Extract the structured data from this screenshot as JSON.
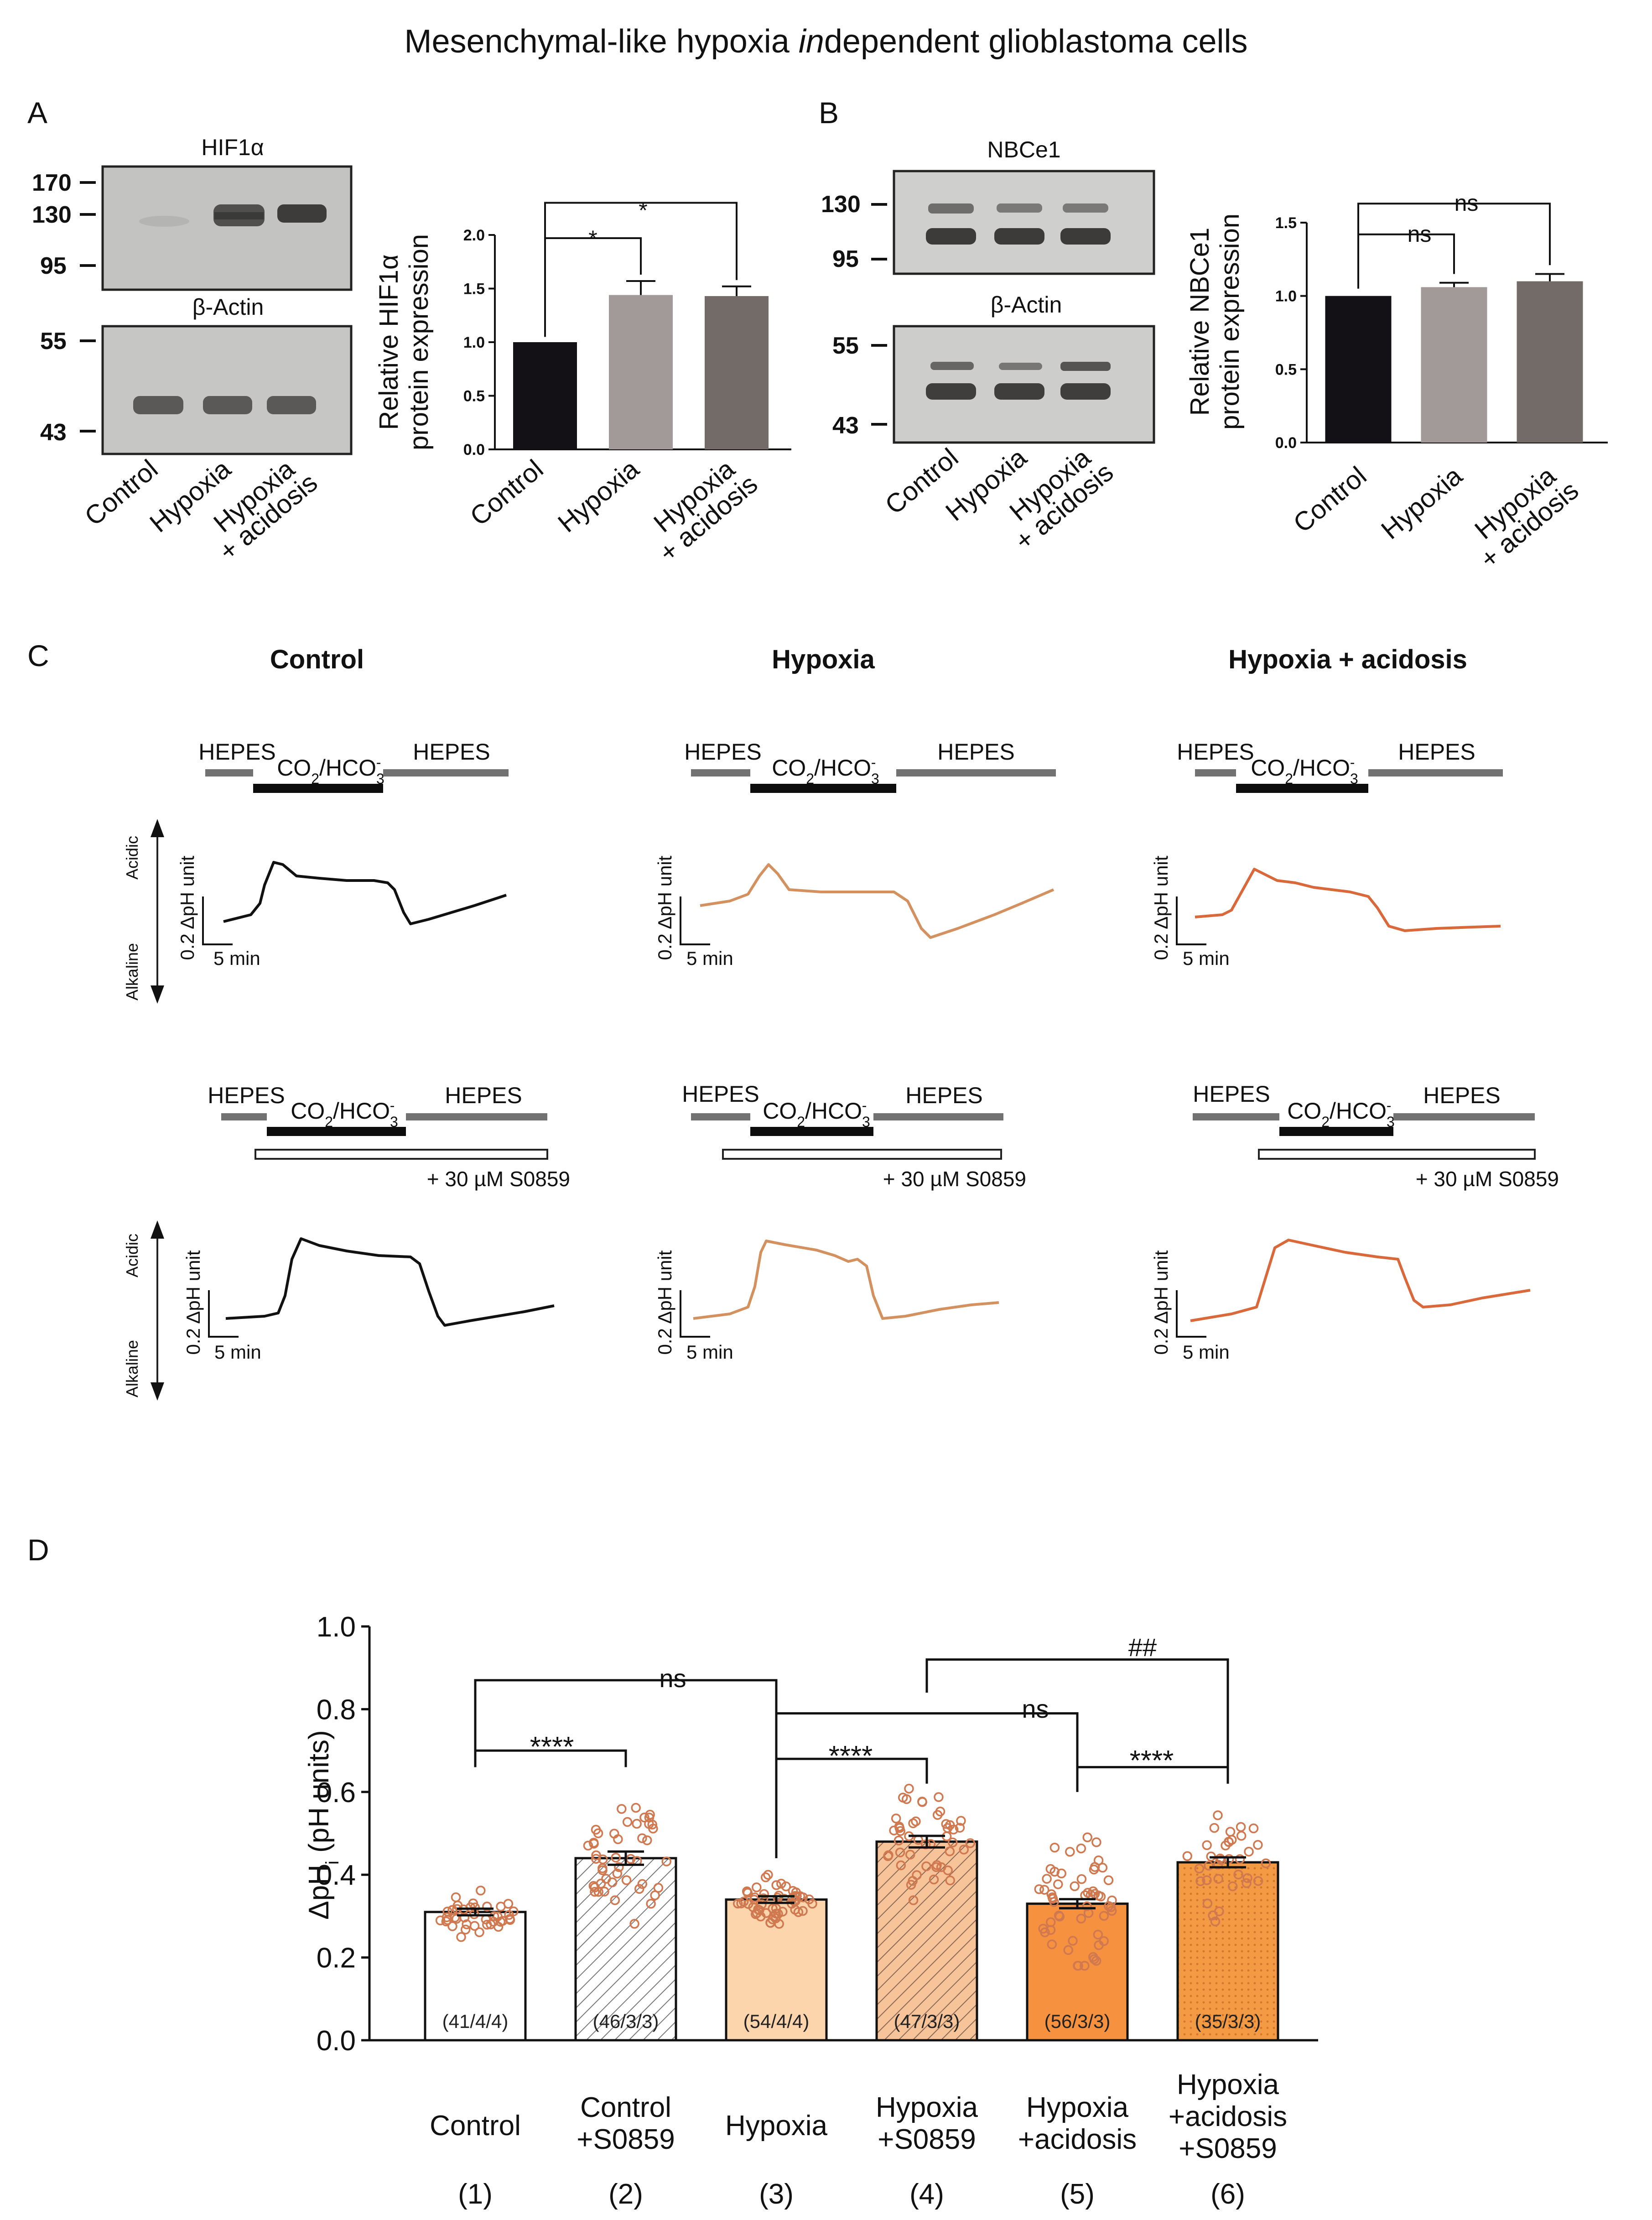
{
  "title_pre": "Mesenchymal-like hypoxia ",
  "title_ital": "in",
  "title_post": "dependent glioblastoma cells",
  "panel_A": {
    "letter": "A",
    "blot_top_label": "HIF1α",
    "blot_top_markers": [
      "170",
      "130",
      "95"
    ],
    "blot_bottom_label": "β-Actin",
    "blot_bottom_markers": [
      "55",
      "43"
    ],
    "lanes": [
      "Control",
      "Hypoxia",
      "Hypoxia",
      "+ acidosis"
    ],
    "chart": {
      "ylabel_1": "Relative HIF1α",
      "ylabel_2": "protein expression",
      "ticks": [
        "0.0",
        "0.5",
        "1.0",
        "1.5",
        "2.0"
      ],
      "sig_1": "*",
      "sig_2": "*",
      "cat_1": "Control",
      "cat_2": "Hypoxia",
      "cat_3a": "Hypoxia",
      "cat_3b": "+ acidosis"
    }
  },
  "panel_B": {
    "letter": "B",
    "blot_top_label": "NBCe1",
    "blot_top_markers": [
      "130",
      "95"
    ],
    "blot_bottom_label": "β-Actin",
    "blot_bottom_markers": [
      "55",
      "43"
    ],
    "lanes": [
      "Control",
      "Hypoxia",
      "Hypoxia",
      "+ acidosis"
    ],
    "chart": {
      "ylabel_1": "Relative NBCe1",
      "ylabel_2": "protein expression",
      "ticks": [
        "0.0",
        "0.5",
        "1.0",
        "1.5"
      ],
      "sig_1": "ns",
      "sig_2": "ns",
      "cat_1": "Control",
      "cat_2": "Hypoxia",
      "cat_3a": "Hypoxia",
      "cat_3b": "+ acidosis"
    }
  },
  "panel_C": {
    "letter": "C",
    "conditions": [
      "Control",
      "Hypoxia",
      "Hypoxia + acidosis"
    ],
    "hepes": "HEPES",
    "co2": "CO",
    "co2_sub": "2",
    "hco": "/HCO",
    "hco_sub": "3",
    "hco_sup": "-",
    "drug": "+ 30 µM S0859",
    "scale_y": "0.2 ΔpH unit",
    "scale_x": "5 min",
    "acidic": "Acidic",
    "alkaline": "Alkaline",
    "trace_colors": [
      "#111111",
      "#d2915f",
      "#d9683a"
    ]
  },
  "panel_D": {
    "letter": "D",
    "ylabel_main": "ΔpH",
    "ylabel_sub": "i",
    "ylabel_rest": " (pH units)",
    "ticks": [
      "0.0",
      "0.2",
      "0.4",
      "0.6",
      "0.8",
      "1.0"
    ],
    "n_labels": [
      "(41/4/4)",
      "(46/3/3)",
      "(54/4/4)",
      "(47/3/3)",
      "(56/3/3)",
      "(35/3/3)"
    ],
    "cat_lines": [
      [
        "Control"
      ],
      [
        "Control",
        "+S0859"
      ],
      [
        "Hypoxia"
      ],
      [
        "Hypoxia",
        "+S0859"
      ],
      [
        "Hypoxia",
        "+acidosis"
      ],
      [
        "Hypoxia",
        "+acidosis",
        "+S0859"
      ]
    ],
    "cat_index": [
      "(1)",
      "(2)",
      "(3)",
      "(4)",
      "(5)",
      "(6)"
    ],
    "sig": {
      "ns_1_3": "ns",
      "stars_1_2": "****",
      "stars_3_4": "****",
      "ns_3_5": "ns",
      "hash_4_6": "##",
      "stars_5_6": "****"
    },
    "fill_colors": [
      "#ffffff",
      "#ffffff",
      "#fdd5ad",
      "#f7c49a",
      "#f5913f",
      "#f39a45"
    ],
    "dot_color": "#d0784f"
  },
  "chart_data": [
    {
      "type": "bar",
      "title": "Relative HIF1α protein expression",
      "categories": [
        "Control",
        "Hypoxia",
        "Hypoxia + acidosis"
      ],
      "values": [
        1.0,
        1.44,
        1.43
      ],
      "errors": [
        0.0,
        0.13,
        0.09
      ],
      "colors": [
        "#141116",
        "#a19a98",
        "#736b67"
      ],
      "ylabel": "Relative HIF1α protein expression",
      "ylim": [
        0,
        2.0
      ]
    },
    {
      "type": "bar",
      "title": "Relative NBCe1 protein expression",
      "categories": [
        "Control",
        "Hypoxia",
        "Hypoxia + acidosis"
      ],
      "values": [
        1.0,
        1.06,
        1.1
      ],
      "errors": [
        0.0,
        0.03,
        0.05
      ],
      "colors": [
        "#141116",
        "#a19a98",
        "#736b67"
      ],
      "ylabel": "Relative NBCe1 protein expression",
      "ylim": [
        0,
        1.5
      ]
    },
    {
      "type": "bar",
      "title": "ΔpHi (pH units)",
      "categories": [
        "Control",
        "Control +S0859",
        "Hypoxia",
        "Hypoxia +S0859",
        "Hypoxia +acidosis",
        "Hypoxia +acidosis +S0859"
      ],
      "values": [
        0.31,
        0.44,
        0.34,
        0.48,
        0.33,
        0.43
      ],
      "errors": [
        0.008,
        0.016,
        0.008,
        0.014,
        0.011,
        0.012
      ],
      "n": [
        "41/4/4",
        "46/3/3",
        "54/4/4",
        "47/3/3",
        "56/3/3",
        "35/3/3"
      ],
      "ylabel": "ΔpHi (pH units)",
      "ylim": [
        0,
        1.0
      ]
    }
  ]
}
